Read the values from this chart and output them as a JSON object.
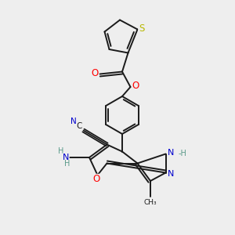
{
  "bg_color": "#eeeeee",
  "bond_color": "#1a1a1a",
  "atom_colors": {
    "O": "#ff0000",
    "N": "#0000cd",
    "S": "#b8b800",
    "C": "#1a1a1a",
    "H": "#5a9a8a"
  }
}
